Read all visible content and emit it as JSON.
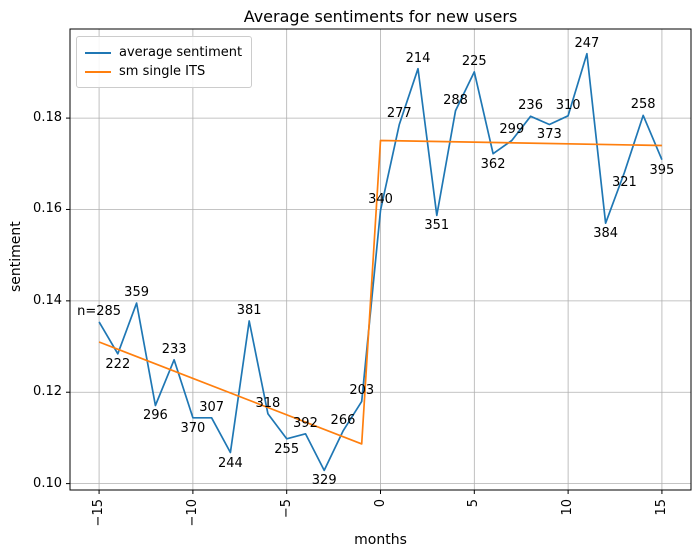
{
  "title": "Average sentiments for new users",
  "axes": {
    "xlabel": "months",
    "ylabel": "sentiment"
  },
  "legend": {
    "items": [
      {
        "label": "average sentiment",
        "color": "#1f77b4"
      },
      {
        "label": "sm single ITS",
        "color": "#ff7f0e"
      }
    ]
  },
  "colors": {
    "grid": "#b0b0b0",
    "spine": "#000000",
    "blue": "#1f77b4",
    "orange": "#ff7f0e"
  },
  "chart_data": {
    "type": "line",
    "title": "Average sentiments for new users",
    "xlabel": "months",
    "ylabel": "sentiment",
    "xlim": [
      -16.55,
      16.55
    ],
    "ylim": [
      0.0986,
      0.1995
    ],
    "xticks": [
      -15,
      -10,
      -5,
      0,
      5,
      10,
      15
    ],
    "xtick_labels": [
      "−15",
      "−10",
      "−5",
      "0",
      "5",
      "10",
      "15"
    ],
    "ytick_labels": [
      "0.10",
      "0.12",
      "0.14",
      "0.16",
      "0.18"
    ],
    "yticks": [
      0.1,
      0.12,
      0.14,
      0.16,
      0.18
    ],
    "grid": true,
    "legend_position": "upper left",
    "series": [
      {
        "name": "average sentiment",
        "color": "#1f77b4",
        "x": [
          -15,
          -14,
          -13,
          -12,
          -11,
          -10,
          -9,
          -8,
          -7,
          -6,
          -5,
          -4,
          -3,
          -2,
          -1,
          0,
          1,
          2,
          3,
          4,
          5,
          6,
          7,
          8,
          9,
          10,
          11,
          12,
          13,
          14,
          15
        ],
        "values": [
          0.1354,
          0.1284,
          0.1395,
          0.1171,
          0.1271,
          0.1144,
          0.1144,
          0.1068,
          0.1356,
          0.1153,
          0.1098,
          0.1109,
          0.1029,
          0.1115,
          0.118,
          0.1598,
          0.1786,
          0.1908,
          0.1587,
          0.1816,
          0.1901,
          0.1722,
          0.1751,
          0.1804,
          0.1786,
          0.1805,
          0.1941,
          0.157,
          0.1681,
          0.1806,
          0.1709
        ],
        "sample_sizes": [
          285,
          222,
          359,
          296,
          233,
          370,
          307,
          244,
          381,
          318,
          255,
          392,
          329,
          266,
          203,
          340,
          277,
          214,
          351,
          288,
          225,
          362,
          299,
          236,
          373,
          310,
          247,
          384,
          321,
          258,
          395
        ],
        "annotations": [
          {
            "text": "n=285",
            "placement": "above"
          },
          {
            "text": "222",
            "placement": "below"
          },
          {
            "text": "359",
            "placement": "above"
          },
          {
            "text": "296",
            "placement": "below"
          },
          {
            "text": "233",
            "placement": "above"
          },
          {
            "text": "370",
            "placement": "below"
          },
          {
            "text": "307",
            "placement": "above"
          },
          {
            "text": "244",
            "placement": "below"
          },
          {
            "text": "381",
            "placement": "above"
          },
          {
            "text": "318",
            "placement": "above"
          },
          {
            "text": "255",
            "placement": "below"
          },
          {
            "text": "392",
            "placement": "above"
          },
          {
            "text": "329",
            "placement": "below"
          },
          {
            "text": "266",
            "placement": "above"
          },
          {
            "text": "203",
            "placement": "above"
          },
          {
            "text": "340",
            "placement": "above"
          },
          {
            "text": "277",
            "placement": "above"
          },
          {
            "text": "214",
            "placement": "above"
          },
          {
            "text": "351",
            "placement": "below"
          },
          {
            "text": "288",
            "placement": "above"
          },
          {
            "text": "225",
            "placement": "above"
          },
          {
            "text": "362",
            "placement": "below"
          },
          {
            "text": "299",
            "placement": "above"
          },
          {
            "text": "236",
            "placement": "above"
          },
          {
            "text": "373",
            "placement": "below"
          },
          {
            "text": "310",
            "placement": "above"
          },
          {
            "text": "247",
            "placement": "above"
          },
          {
            "text": "384",
            "placement": "below"
          },
          {
            "text": "321",
            "placement": "below"
          },
          {
            "text": "258",
            "placement": "above"
          },
          {
            "text": "395",
            "placement": "below"
          }
        ]
      },
      {
        "name": "sm single ITS",
        "color": "#ff7f0e",
        "x": [
          -15,
          -1,
          0,
          15
        ],
        "values": [
          0.131,
          0.1087,
          0.1751,
          0.174
        ],
        "annotations": []
      }
    ]
  }
}
